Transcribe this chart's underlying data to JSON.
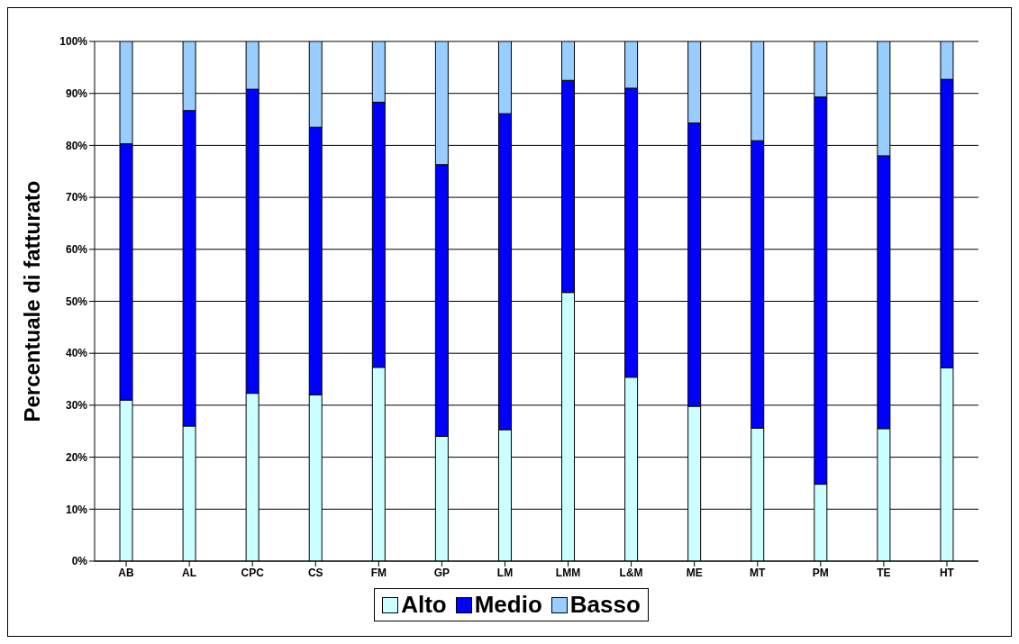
{
  "chart_data": {
    "type": "bar",
    "stacked": true,
    "ylabel": "Percentuale di fatturato",
    "categories": [
      "AB",
      "AL",
      "CPC",
      "CS",
      "FM",
      "GP",
      "LM",
      "LMM",
      "L&M",
      "ME",
      "MT",
      "PM",
      "TE",
      "HT"
    ],
    "series": [
      {
        "name": "Alto",
        "color": "#ccffff",
        "values": [
          31,
          26,
          32.3,
          32,
          37.3,
          24,
          25.3,
          51.7,
          35.4,
          29.8,
          25.6,
          14.8,
          25.5,
          37.2
        ]
      },
      {
        "name": "Medio",
        "color": "#0000ff",
        "values": [
          49.3,
          60.7,
          58.5,
          51.5,
          51,
          52.3,
          60.8,
          40.8,
          55.6,
          54.5,
          55.3,
          74.5,
          52.5,
          55.5
        ]
      },
      {
        "name": "Basso",
        "color": "#99ccff",
        "values": [
          19.7,
          13.3,
          9.2,
          16.5,
          11.7,
          23.7,
          13.9,
          7.5,
          9,
          15.7,
          19.1,
          10.7,
          22,
          7.3
        ]
      }
    ],
    "ylim": [
      0,
      100
    ],
    "yticks": [
      {
        "value": 0,
        "label": "0%"
      },
      {
        "value": 10,
        "label": "10%"
      },
      {
        "value": 20,
        "label": "20%"
      },
      {
        "value": 30,
        "label": "30%"
      },
      {
        "value": 40,
        "label": "40%"
      },
      {
        "value": 50,
        "label": "50%"
      },
      {
        "value": 60,
        "label": "60%"
      },
      {
        "value": 70,
        "label": "70%"
      },
      {
        "value": 80,
        "label": "80%"
      },
      {
        "value": 90,
        "label": "90%"
      },
      {
        "value": 100,
        "label": "100%"
      }
    ],
    "grid": "y",
    "legend": "bottom"
  }
}
